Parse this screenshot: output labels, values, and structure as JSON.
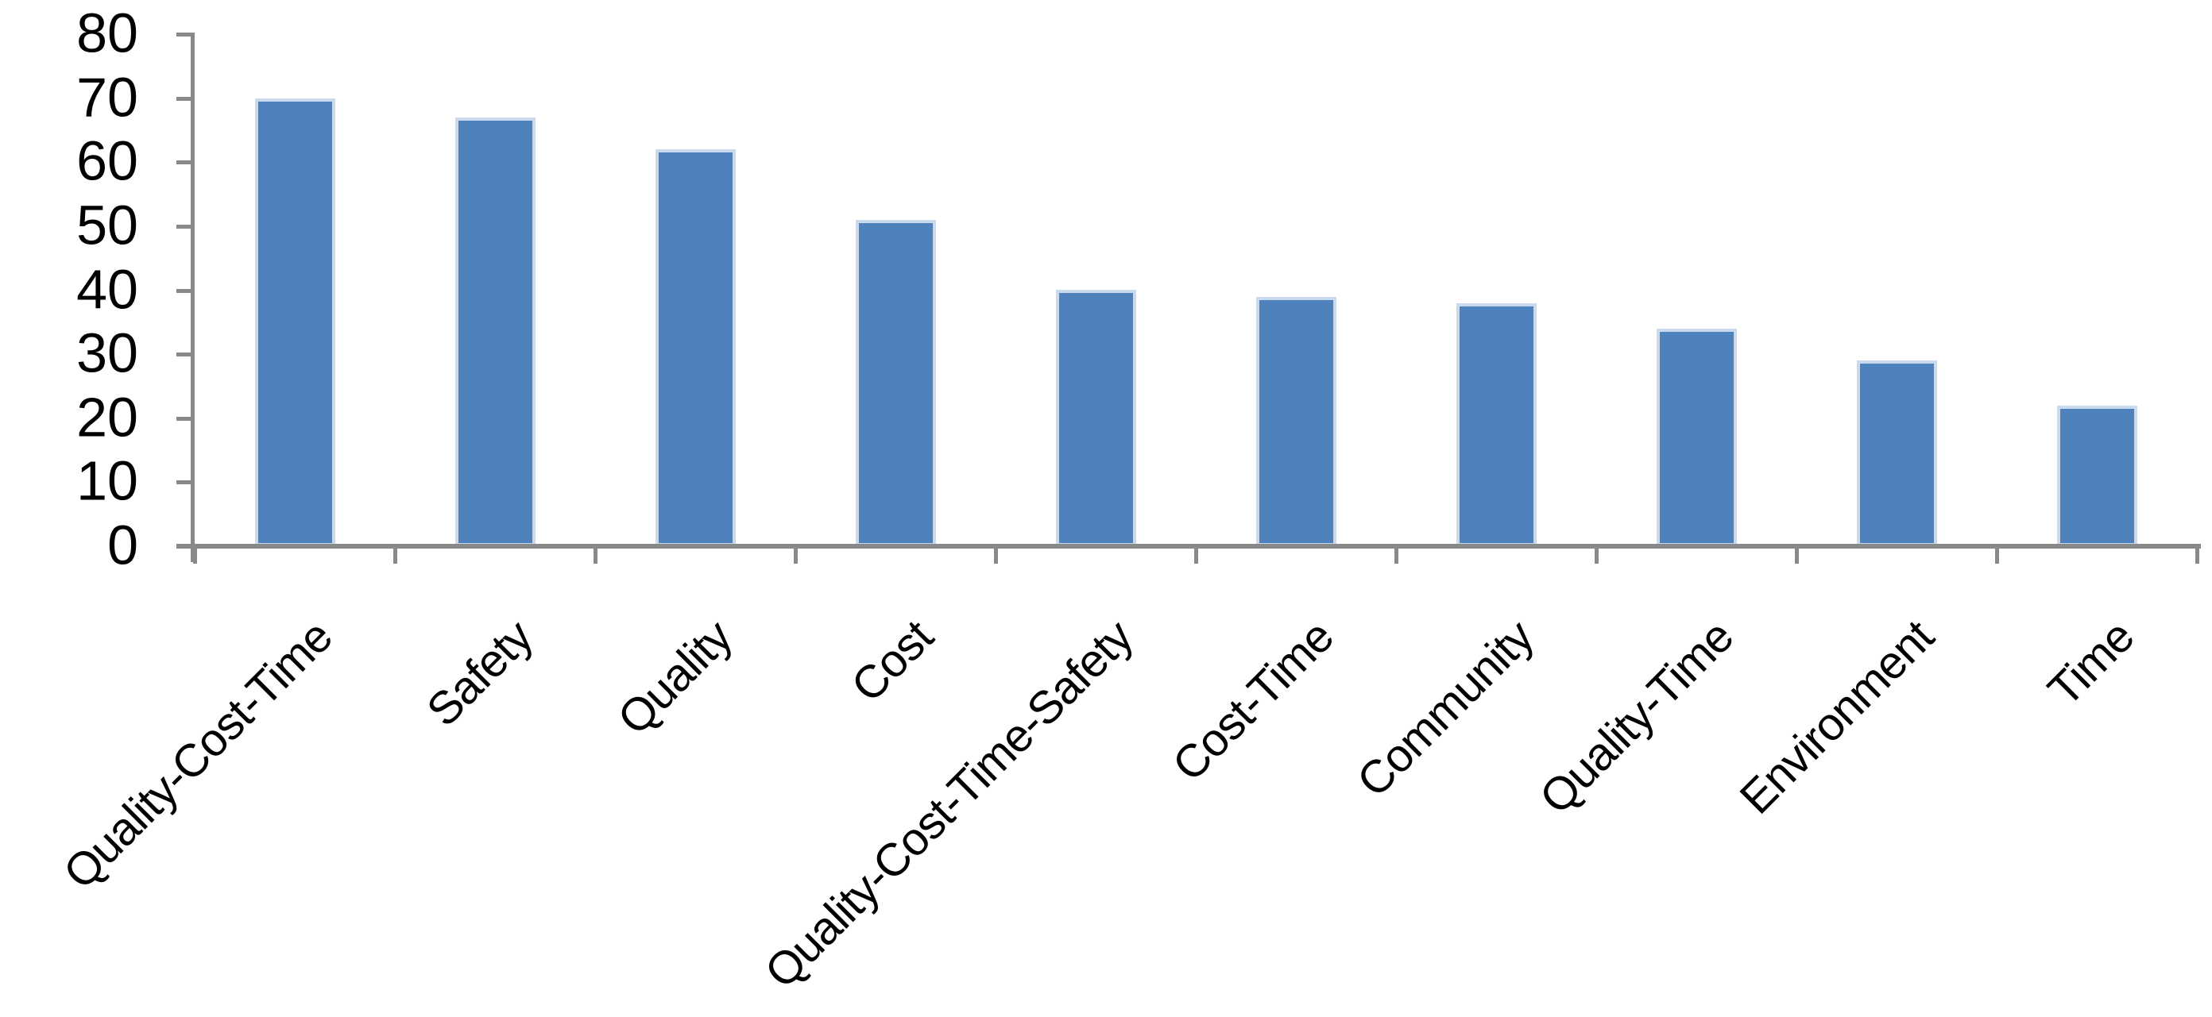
{
  "chart_data": {
    "type": "bar",
    "title": "",
    "xlabel": "",
    "ylabel": "",
    "categories": [
      "Quality-Cost-Time",
      "Safety",
      "Quality",
      "Cost",
      "Quality-Cost-Time-Safety",
      "Cost-Time",
      "Community",
      "Quality-Time",
      "Environment",
      "Time"
    ],
    "values": [
      70,
      67,
      62,
      51,
      40,
      39,
      38,
      34,
      29,
      22
    ],
    "ylim": [
      0,
      80
    ],
    "y_ticks": [
      0,
      10,
      20,
      30,
      40,
      50,
      60,
      70,
      80
    ],
    "y_tick_labels": [
      "0",
      "10",
      "20",
      "30",
      "40",
      "50",
      "60",
      "70",
      "80"
    ],
    "x_tick_label_rotation": -45,
    "grid": false,
    "legend": "none",
    "colors": {
      "bar_fill": "#4F81BD",
      "bar_edge": "#C9D9EE",
      "axis": "#898989",
      "text": "#000000",
      "background": "#FFFFFF"
    }
  }
}
